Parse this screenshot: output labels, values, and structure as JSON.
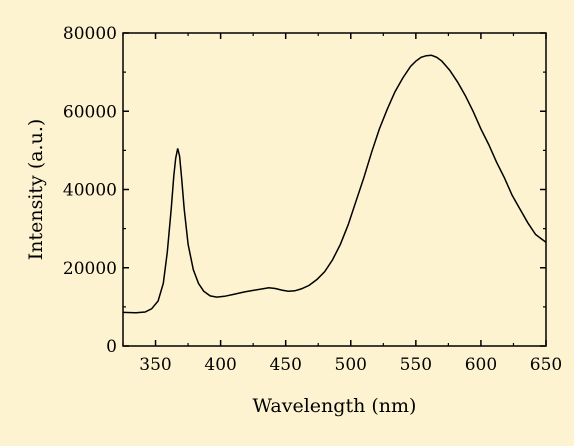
{
  "colors": {
    "background": "#fdf3d0",
    "line": "#000000",
    "axis": "#000000"
  },
  "chart_data": {
    "type": "line",
    "title": "",
    "xlabel": "Wavelength (nm)",
    "ylabel": "Intensity (a.u.)",
    "xlim": [
      325,
      650
    ],
    "ylim": [
      0,
      80000
    ],
    "x_ticks": [
      350,
      400,
      450,
      500,
      550,
      600,
      650
    ],
    "x_tick_labels": [
      "350",
      "400",
      "450",
      "500",
      "550",
      "600",
      "650"
    ],
    "y_ticks": [
      0,
      20000,
      40000,
      60000,
      80000
    ],
    "y_tick_labels": [
      "0",
      "20000",
      "40000",
      "60000",
      "80000"
    ],
    "grid": false,
    "legend": "none",
    "series": [
      {
        "x": [
          325,
          335,
          342,
          347,
          352,
          356,
          359,
          362,
          364,
          365.5,
          367,
          368.5,
          370,
          372,
          375,
          379,
          383,
          387,
          392,
          397,
          403,
          410,
          418,
          425,
          432,
          437,
          442,
          447,
          452,
          457,
          462,
          468,
          474,
          480,
          486,
          492,
          498,
          504,
          510,
          516,
          522,
          528,
          534,
          540,
          546,
          550,
          554,
          558,
          562,
          566,
          570,
          576,
          582,
          588,
          594,
          600,
          606,
          612,
          618,
          624,
          630,
          636,
          642,
          648,
          650
        ],
        "y": [
          8600,
          8500,
          8700,
          9500,
          11500,
          16000,
          24000,
          35000,
          43500,
          48000,
          50500,
          48500,
          43000,
          35000,
          26000,
          19500,
          16000,
          14000,
          12800,
          12500,
          12700,
          13200,
          13800,
          14200,
          14600,
          14900,
          14700,
          14300,
          14000,
          14100,
          14600,
          15500,
          17000,
          19000,
          22000,
          26000,
          31000,
          37000,
          43000,
          49500,
          55500,
          60500,
          65000,
          68500,
          71500,
          72800,
          73800,
          74200,
          74300,
          73800,
          72800,
          70500,
          67500,
          64000,
          60000,
          55500,
          51500,
          47000,
          43000,
          38500,
          35000,
          31500,
          28500,
          27000,
          26500
        ]
      }
    ]
  }
}
